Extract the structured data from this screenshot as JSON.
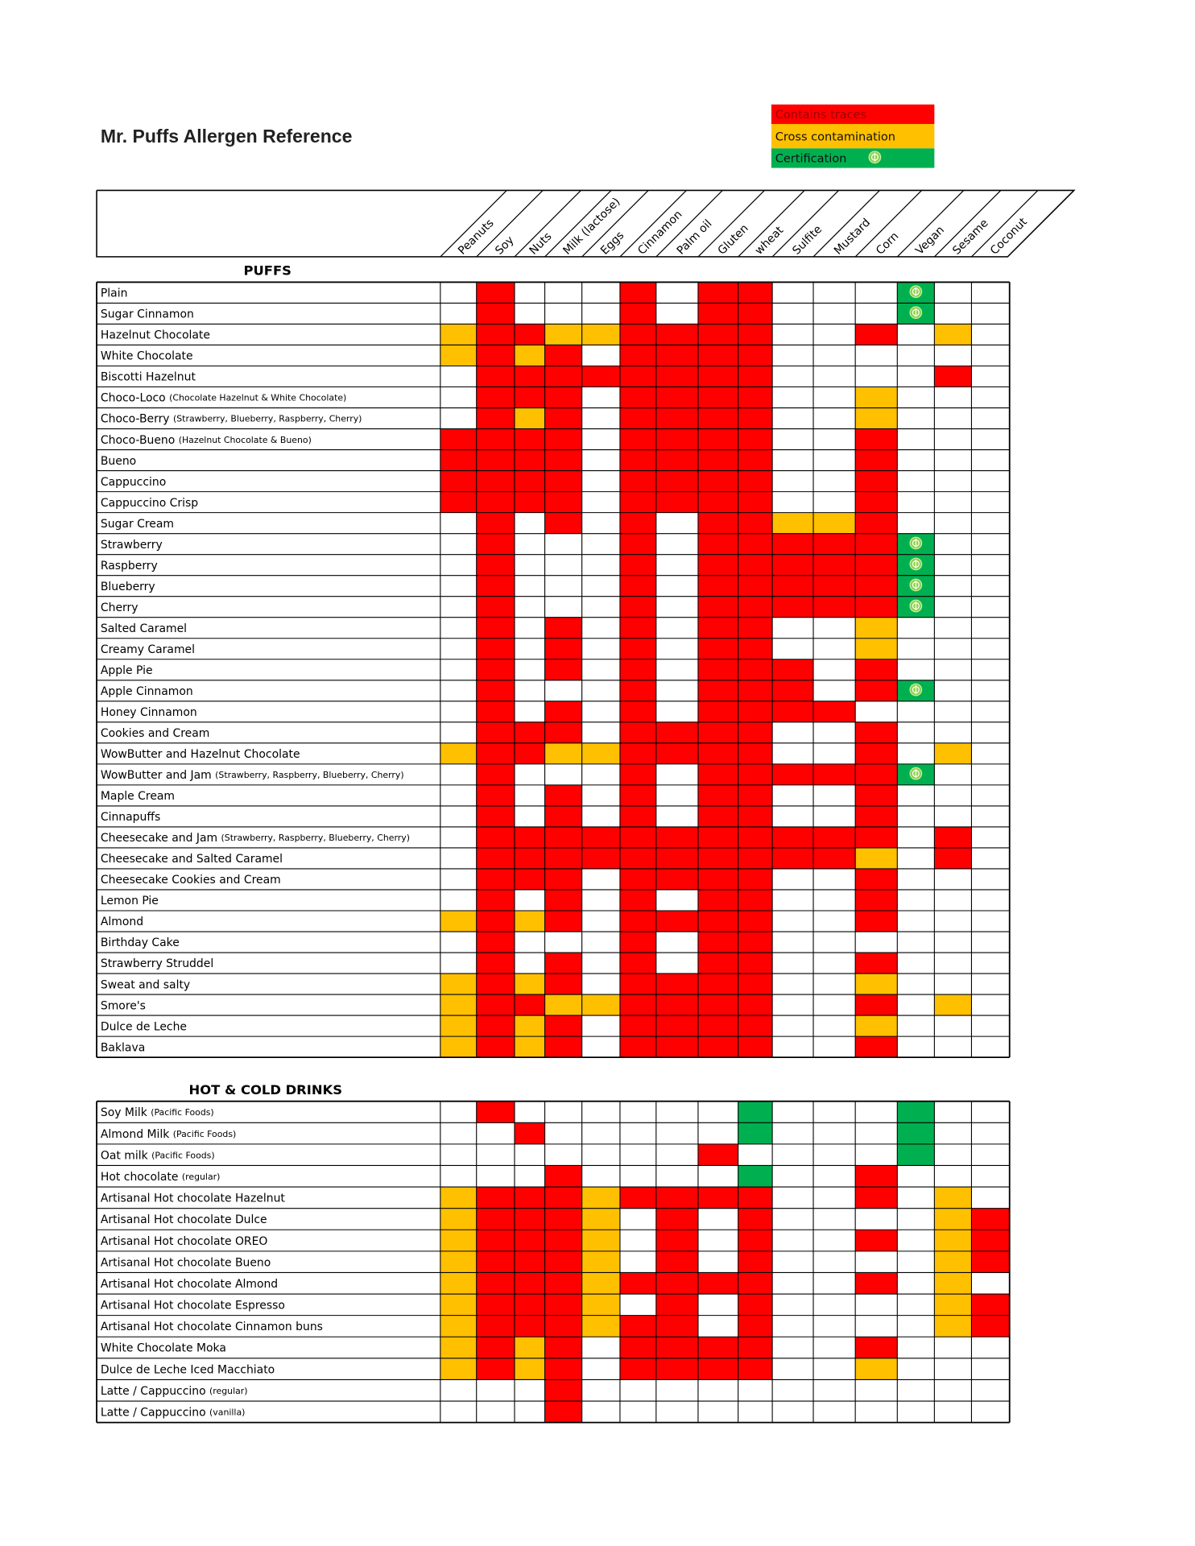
{
  "title": "Mr. Puffs Allergen Reference",
  "legend": [
    {
      "label": "Contains traces",
      "code": "r"
    },
    {
      "label": "Cross contamination",
      "code": "y"
    },
    {
      "label": "Certification",
      "code": "c"
    }
  ],
  "columns": [
    "Peanuts",
    "Soy",
    "Nuts",
    "Milk (lactose)",
    "Eggs",
    "Cinnamon",
    "Palm oil",
    "Gluten",
    "wheat",
    "Sulfite",
    "Mustard",
    "Corn",
    "Vegan",
    "Sesame",
    "Coconut"
  ],
  "sections": [
    {
      "title": "PUFFS",
      "rows": [
        {
          "name": "Plain",
          "cells": ".r...r.rr...c.."
        },
        {
          "name": "Sugar Cinnamon",
          "cells": ".r...r.rr...c.."
        },
        {
          "name": "Hazelnut Chocolate",
          "cells": "yrryyrrrr..r.y."
        },
        {
          "name": "White Chocolate",
          "cells": "yryr.rrrr......"
        },
        {
          "name": "Biscotti Hazelnut",
          "cells": ".rrrrrrrr....r."
        },
        {
          "name": "Choco-Loco",
          "note": "(Chocolate Hazelnut & White Chocolate)",
          "cells": ".rrr.rrrr..y..."
        },
        {
          "name": "Choco-Berry",
          "note": "(Strawberry, Blueberry, Raspberry, Cherry)",
          "cells": ".ryr.rrrr..y..."
        },
        {
          "name": "Choco-Bueno",
          "note": "(Hazelnut Chocolate & Bueno)",
          "cells": "rrrr.rrrr..r..."
        },
        {
          "name": "Bueno",
          "cells": "rrrr.rrrr..r..."
        },
        {
          "name": "Cappuccino",
          "cells": "rrrr.rrrr..r..."
        },
        {
          "name": "Cappuccino Crisp",
          "cells": "rrrr.rrrr..r..."
        },
        {
          "name": "Sugar Cream",
          "cells": ".r.r.r.rryyr..."
        },
        {
          "name": "Strawberry",
          "cells": ".r...r.rrrrrc.."
        },
        {
          "name": "Raspberry",
          "cells": ".r...r.rrrrrc.."
        },
        {
          "name": "Blueberry",
          "cells": ".r...r.rrrrrc.."
        },
        {
          "name": "Cherry",
          "cells": ".r...r.rrrrrc.."
        },
        {
          "name": "Salted Caramel",
          "cells": ".r.r.r.rr..y..."
        },
        {
          "name": "Creamy Caramel",
          "cells": ".r.r.r.rr..y..."
        },
        {
          "name": "Apple Pie",
          "cells": ".r.r.r.rrr.r..."
        },
        {
          "name": "Apple Cinnamon",
          "cells": ".r...r.rrr.rc.."
        },
        {
          "name": "Honey Cinnamon",
          "cells": ".r.r.r.rrrr...."
        },
        {
          "name": "Cookies and Cream",
          "cells": ".rrr.rrrr..r..."
        },
        {
          "name": "WowButter and Hazelnut Chocolate",
          "cells": "yrryyrrrr..r.y."
        },
        {
          "name": "WowButter and Jam",
          "note": "(Strawberry, Raspberry, Blueberry, Cherry)",
          "cells": ".r...r.rrrrrc.."
        },
        {
          "name": "Maple Cream",
          "cells": ".r.r.r.rr..r..."
        },
        {
          "name": "Cinnapuffs",
          "cells": ".r.r.r.rr..r..."
        },
        {
          "name": "Cheesecake and Jam",
          "note": "(Strawberry, Raspberry, Blueberry, Cherry)",
          "cells": ".rrrrrrrrrrr.r."
        },
        {
          "name": "Cheesecake and Salted Caramel",
          "cells": ".rrrrrrrrrry.r."
        },
        {
          "name": "Cheesecake Cookies and Cream",
          "cells": ".rrr.rrrr..r..."
        },
        {
          "name": "Lemon Pie",
          "cells": ".r.r.r.rr..r..."
        },
        {
          "name": "Almond",
          "cells": "yryr.rrrr..r..."
        },
        {
          "name": "Birthday Cake",
          "cells": ".r...r.rr......"
        },
        {
          "name": "Strawberry Struddel",
          "cells": ".r.r.r.rr..r..."
        },
        {
          "name": "Sweat and salty",
          "cells": "yryr.rrrr..y..."
        },
        {
          "name": "Smore's",
          "cells": "yrryyrrrr..r.y."
        },
        {
          "name": "Dulce de Leche",
          "cells": "yryr.rrrr..y..."
        },
        {
          "name": "Baklava",
          "cells": "yryr.rrrr..r..."
        }
      ]
    },
    {
      "title": "HOT & COLD DRINKS",
      "rows": [
        {
          "name": "Soy Milk",
          "note": "(Pacific Foods)",
          "cells": ".r......g...g.."
        },
        {
          "name": "Almond Milk",
          "note": "(Pacific Foods)",
          "cells": "..r.....g...g.."
        },
        {
          "name": "Oat milk",
          "note": "(Pacific Foods)",
          "cells": ".......r....g.."
        },
        {
          "name": "Hot chocolate",
          "note": "(regular)",
          "cells": "...r....g..r..."
        },
        {
          "name": "Artisanal Hot chocolate Hazelnut",
          "cells": "yrrryrrrr..r.y."
        },
        {
          "name": "Artisanal Hot chocolate Dulce",
          "cells": "yrrry.r.r....yr"
        },
        {
          "name": "Artisanal Hot chocolate OREO",
          "cells": "yrrry.r.r..r.yr"
        },
        {
          "name": "Artisanal Hot chocolate Bueno",
          "cells": "yrrry.r.r....yr"
        },
        {
          "name": "Artisanal Hot chocolate Almond",
          "cells": "yrrryrrrr..r.y."
        },
        {
          "name": "Artisanal Hot chocolate Espresso",
          "cells": "yrrry.r.r....yr"
        },
        {
          "name": "Artisanal Hot chocolate Cinnamon buns",
          "cells": "yrrryrr.r....yr"
        },
        {
          "name": "White Chocolate Moka",
          "cells": "yryr.rrrr..r..."
        },
        {
          "name": "Dulce de Leche Iced Macchiato",
          "cells": "yryr.rrrr..y..."
        },
        {
          "name": "Latte / Cappuccino",
          "note": "(regular)",
          "cells": "...r..........."
        },
        {
          "name": "Latte / Cappuccino",
          "note": "(vanilla)",
          "cells": "...r..........."
        }
      ]
    }
  ]
}
